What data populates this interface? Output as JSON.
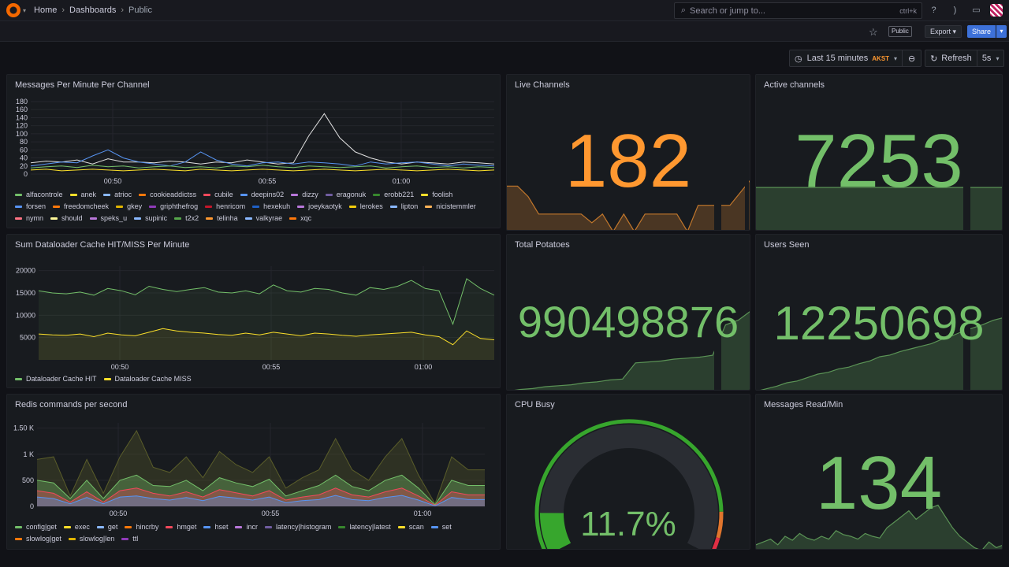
{
  "topbar": {
    "breadcrumbs": [
      "Home",
      "Dashboards",
      "Public"
    ],
    "search_placeholder": "Search or jump to...",
    "search_shortcut": "ctrl+k"
  },
  "toolbar": {
    "public_tag": "Public",
    "export_label": "Export",
    "share_label": "Share"
  },
  "timepicker": {
    "range": "Last 15 minutes",
    "timezone": "AKST",
    "refresh_label": "Refresh",
    "refresh_interval": "5s"
  },
  "panels": {
    "messages_per_minute": {
      "title": "Messages Per Minute Per Channel",
      "legend": [
        "alfacontrole",
        "anek",
        "atrioc",
        "cookieaddictss",
        "cubile",
        "deepins02",
        "dizzy",
        "eragonuk",
        "erobb221",
        "foolish",
        "forsen",
        "freedomcheek",
        "gkey",
        "griphthefrog",
        "henricom",
        "hexekuh",
        "joeykaotyk",
        "lerokes",
        "lipton",
        "nicistemmler",
        "nymn",
        "should",
        "speks_u",
        "supinic",
        "t2x2",
        "telinha",
        "valkyrae",
        "xqc"
      ]
    },
    "live_channels": {
      "title": "Live Channels",
      "value": "182",
      "color": "#ff9830"
    },
    "active_channels": {
      "title": "Active channels",
      "value": "7253",
      "color": "#73bf69"
    },
    "dataloader": {
      "title": "Sum Dataloader Cache HIT/MISS Per Minute",
      "legend": [
        "Dataloader Cache HIT",
        "Dataloader Cache MISS"
      ]
    },
    "total_potatoes": {
      "title": "Total Potatoes",
      "value": "990498876",
      "color": "#73bf69"
    },
    "users_seen": {
      "title": "Users Seen",
      "value": "12250698",
      "color": "#73bf69"
    },
    "redis": {
      "title": "Redis commands per second",
      "legend": [
        "config|get",
        "exec",
        "get",
        "hincrby",
        "hmget",
        "hset",
        "incr",
        "latency|histogram",
        "latency|latest",
        "scan",
        "set",
        "slowlog|get",
        "slowlog|len",
        "ttl"
      ]
    },
    "cpu_busy": {
      "title": "CPU Busy",
      "value": "11.7%",
      "percent": 11.7,
      "color": "#73bf69"
    },
    "messages_read": {
      "title": "Messages Read/Min",
      "value": "134",
      "color": "#73bf69"
    }
  },
  "legend_colors": [
    "#73bf69",
    "#fade2a",
    "#8ab8ff",
    "#ff780a",
    "#f2495c",
    "#5794f2",
    "#b877d9",
    "#705da0",
    "#37872d",
    "#fade2a",
    "#5794f2",
    "#ff780a",
    "#e0b400",
    "#8f3bb8",
    "#c4162a",
    "#1f60c4",
    "#b877d9",
    "#f2cc0c",
    "#8ab8ff",
    "#ffb357",
    "#ff7383",
    "#fff899",
    "#b877d9",
    "#8ab8ff",
    "#56a64b",
    "#ff9830",
    "#8ab8ff",
    "#ff780a"
  ],
  "chart_data": [
    {
      "type": "line",
      "title": "Messages Per Minute Per Channel",
      "y_ticks": [
        "0",
        "20",
        "40",
        "60",
        "80",
        "100",
        "120",
        "140",
        "160",
        "180"
      ],
      "x_ticks": [
        "00:50",
        "00:55",
        "01:00"
      ],
      "ylim": [
        0,
        180
      ],
      "series": [
        {
          "name": "xqc",
          "values": [
            28,
            32,
            30,
            35,
            25,
            38,
            30,
            30,
            28,
            32,
            30,
            25,
            30,
            28,
            35,
            30,
            25,
            28,
            95,
            150,
            90,
            55,
            40,
            30,
            25,
            30,
            28,
            25,
            30,
            28,
            25
          ]
        },
        {
          "name": "forsen",
          "values": [
            20,
            25,
            30,
            28,
            45,
            60,
            40,
            30,
            25,
            20,
            30,
            55,
            35,
            25,
            20,
            28,
            30,
            25,
            30,
            28,
            25,
            20,
            30,
            25,
            28,
            30,
            25,
            20,
            25,
            22,
            20
          ]
        },
        {
          "name": "alfacontrole",
          "values": [
            15,
            18,
            20,
            16,
            22,
            18,
            20,
            15,
            18,
            20,
            16,
            18,
            15,
            20,
            18,
            22,
            18,
            16,
            20,
            18,
            16,
            18,
            20,
            15,
            18,
            20,
            16,
            18,
            15,
            18,
            16
          ]
        },
        {
          "name": "anek",
          "values": [
            10,
            12,
            8,
            10,
            12,
            10,
            8,
            10,
            12,
            10,
            8,
            12,
            10,
            8,
            10,
            12,
            10,
            8,
            10,
            12,
            10,
            8,
            10,
            12,
            10,
            8,
            10,
            12,
            10,
            8,
            10
          ]
        }
      ]
    },
    {
      "type": "area",
      "title": "Sum Dataloader Cache HIT/MISS Per Minute",
      "y_ticks": [
        "5000",
        "10000",
        "15000",
        "20000"
      ],
      "x_ticks": [
        "00:50",
        "00:55",
        "01:00"
      ],
      "ylim": [
        0,
        21000
      ],
      "series": [
        {
          "name": "Dataloader Cache HIT",
          "values": [
            15500,
            15000,
            14800,
            15200,
            14500,
            16000,
            15500,
            14600,
            16500,
            15800,
            15300,
            15800,
            16200,
            15200,
            15000,
            15500,
            14800,
            16800,
            15500,
            15200,
            16000,
            15800,
            15000,
            14500,
            16200,
            15800,
            16500,
            17800,
            16000,
            15500,
            8000,
            18200,
            16000,
            14500
          ]
        },
        {
          "name": "Dataloader Cache MISS",
          "values": [
            5800,
            5600,
            5500,
            5800,
            5200,
            6000,
            5600,
            5400,
            6200,
            7000,
            6500,
            6200,
            6000,
            5700,
            5500,
            6000,
            5600,
            6200,
            5800,
            5400,
            6000,
            5800,
            5500,
            5300,
            5600,
            5800,
            6000,
            6200,
            5600,
            5200,
            3400,
            6500,
            4800,
            4500
          ]
        }
      ]
    },
    {
      "type": "area",
      "title": "Redis commands per second",
      "y_ticks": [
        "0",
        "500",
        "1 K",
        "1.50 K"
      ],
      "x_ticks": [
        "00:50",
        "00:55",
        "01:00"
      ],
      "ylim": [
        0,
        1600
      ],
      "series": [
        {
          "name": "config|get",
          "values": [
            900,
            950,
            200,
            900,
            250,
            950,
            1450,
            750,
            650,
            950,
            550,
            1050,
            800,
            650,
            950,
            350,
            550,
            700,
            1300,
            700,
            500,
            950,
            1300,
            600,
            50,
            950,
            700,
            700
          ]
        },
        {
          "name": "latency|latest",
          "values": [
            500,
            450,
            150,
            500,
            150,
            500,
            600,
            400,
            380,
            500,
            300,
            550,
            450,
            380,
            520,
            200,
            300,
            400,
            600,
            380,
            300,
            500,
            600,
            350,
            30,
            500,
            400,
            400
          ]
        },
        {
          "name": "hincrby",
          "values": [
            300,
            250,
            80,
            280,
            80,
            300,
            350,
            250,
            200,
            280,
            180,
            320,
            260,
            200,
            300,
            120,
            180,
            220,
            350,
            220,
            180,
            280,
            350,
            200,
            20,
            280,
            220,
            220
          ]
        },
        {
          "name": "get",
          "values": [
            180,
            150,
            50,
            170,
            50,
            180,
            200,
            150,
            120,
            170,
            110,
            190,
            160,
            120,
            180,
            70,
            110,
            130,
            210,
            130,
            110,
            170,
            210,
            120,
            10,
            170,
            130,
            130
          ]
        }
      ]
    },
    {
      "type": "area",
      "title": "Live Channels",
      "values": [
        182,
        182,
        170,
        150,
        150,
        150,
        150,
        150,
        140,
        150,
        130,
        150,
        130,
        150,
        150,
        150,
        150,
        130,
        160,
        160,
        160,
        160,
        175,
        190
      ]
    },
    {
      "type": "area",
      "title": "Active channels",
      "values": [
        7253,
        7253,
        7253,
        7253,
        7253,
        7253,
        7253,
        7253,
        7253,
        7253
      ]
    },
    {
      "type": "area",
      "title": "Total Potatoes",
      "values": [
        1,
        1.2,
        1.3,
        1.5,
        1.6,
        1.7,
        1.9,
        2.0,
        2.2,
        2.3,
        4,
        4.1,
        4.2,
        4.4,
        4.5,
        4.6,
        4.8,
        8,
        8.5,
        9.5
      ]
    },
    {
      "type": "area",
      "title": "Users Seen",
      "values": [
        1,
        1.3,
        1.6,
        2,
        2.2,
        2.6,
        3,
        3.2,
        3.6,
        3.8,
        4.2,
        4.5,
        5,
        5.2,
        5.6,
        5.9,
        6.2,
        6.5,
        7,
        7.4,
        7.9,
        8.3,
        8.7,
        9.2,
        9.5
      ]
    },
    {
      "type": "area",
      "title": "Messages Read/Min",
      "values": [
        30,
        35,
        40,
        30,
        45,
        38,
        50,
        42,
        38,
        45,
        40,
        55,
        48,
        45,
        40,
        50,
        45,
        42,
        60,
        70,
        80,
        90,
        75,
        85,
        95,
        100,
        80,
        60,
        45,
        35,
        25,
        20,
        35,
        25,
        30
      ]
    }
  ]
}
